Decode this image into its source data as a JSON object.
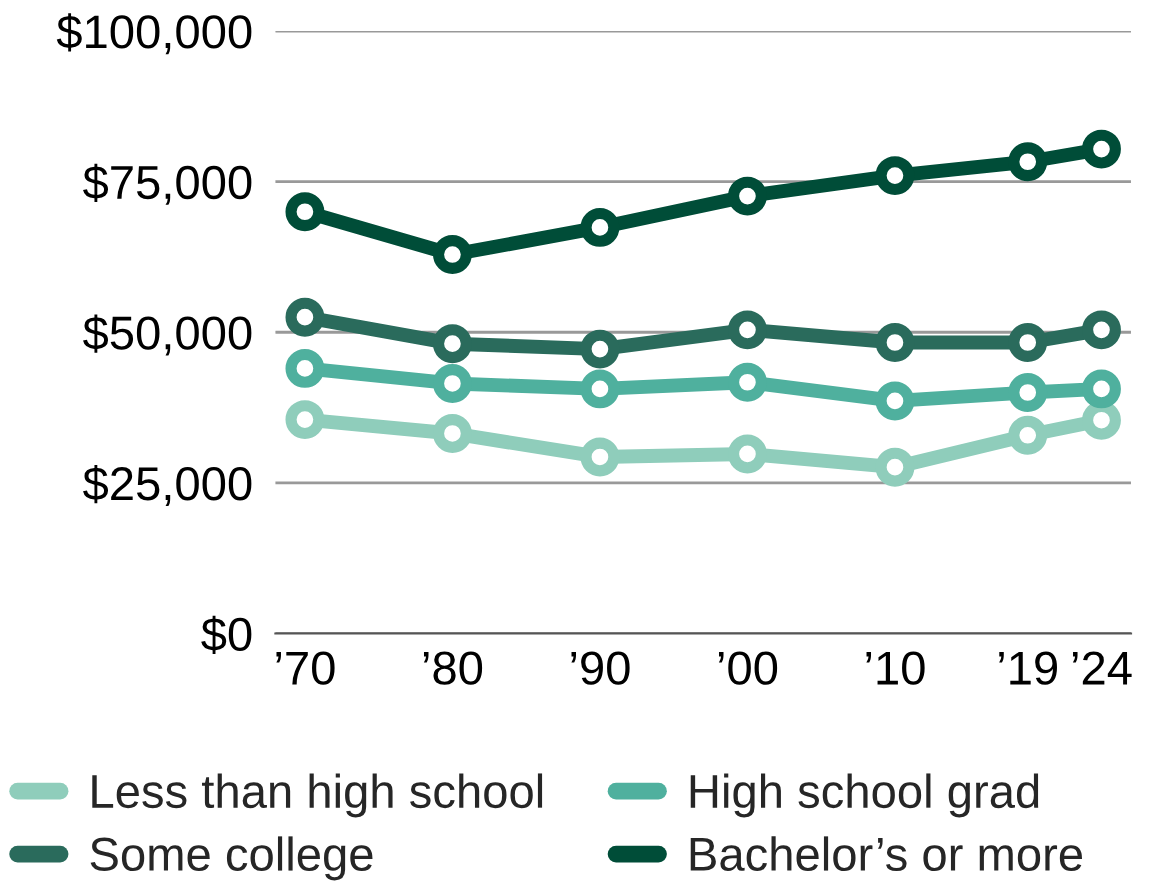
{
  "chart_data": {
    "type": "line",
    "x": [
      1970,
      1980,
      1990,
      2000,
      2010,
      2019,
      2024
    ],
    "xlim": [
      1968,
      2026
    ],
    "xticks": [
      {
        "value": 1970,
        "label": "’70"
      },
      {
        "value": 1980,
        "label": "’80"
      },
      {
        "value": 1990,
        "label": "’90"
      },
      {
        "value": 2000,
        "label": "’00"
      },
      {
        "value": 2010,
        "label": "’10"
      },
      {
        "value": 2019,
        "label": "’19"
      },
      {
        "value": 2024,
        "label": "’24"
      }
    ],
    "ylim": [
      0,
      100000
    ],
    "yticks": [
      {
        "value": 0,
        "label": "$0"
      },
      {
        "value": 25000,
        "label": "$25,000"
      },
      {
        "value": 50000,
        "label": "$50,000"
      },
      {
        "value": 75000,
        "label": "$75,000"
      },
      {
        "value": 100000,
        "label": "$100,000"
      }
    ],
    "grid": "y",
    "legend": "bottom",
    "marker": "circle",
    "line_style": "solid",
    "series": [
      {
        "name": "Less than high school",
        "color": "#8fcdbb",
        "values": [
          35500,
          33200,
          29300,
          29800,
          27600,
          32900,
          35400
        ]
      },
      {
        "name": "High school grad",
        "color": "#4fb09e",
        "values": [
          44000,
          41500,
          40600,
          41700,
          38600,
          40000,
          40600
        ]
      },
      {
        "name": "Some college",
        "color": "#2a6b5c",
        "values": [
          52500,
          48100,
          47200,
          50400,
          48300,
          48300,
          50400
        ]
      },
      {
        "name": "Bachelor’s or more",
        "color": "#004d38",
        "values": [
          70000,
          62900,
          67400,
          72600,
          76000,
          78300,
          80400
        ]
      }
    ]
  }
}
